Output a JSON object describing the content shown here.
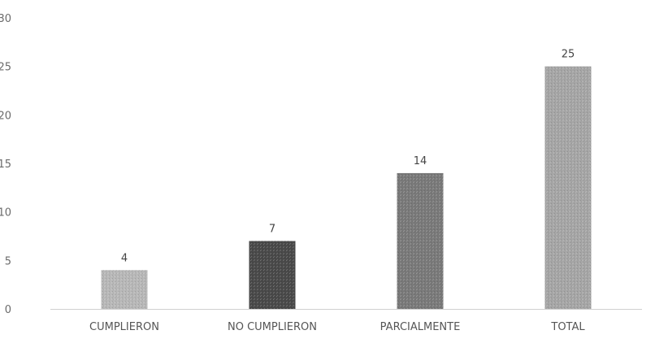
{
  "chart_data": {
    "type": "bar",
    "title": "",
    "xlabel": "",
    "ylabel": "",
    "categories": [
      "CUMPLIERON",
      "NO CUMPLIERON",
      "PARCIALMENTE",
      "TOTAL"
    ],
    "values": [
      4,
      7,
      14,
      25
    ],
    "data_labels": [
      "4",
      "7",
      "14",
      "25"
    ],
    "ylim": [
      0,
      30
    ],
    "yticks": [
      0,
      5,
      10,
      15,
      20,
      25,
      30
    ],
    "grid": false,
    "legend": "none",
    "bar_colors": [
      "#b8b8b8",
      "#4a4a4a",
      "#7a7a7a",
      "#a6a6a6"
    ]
  }
}
